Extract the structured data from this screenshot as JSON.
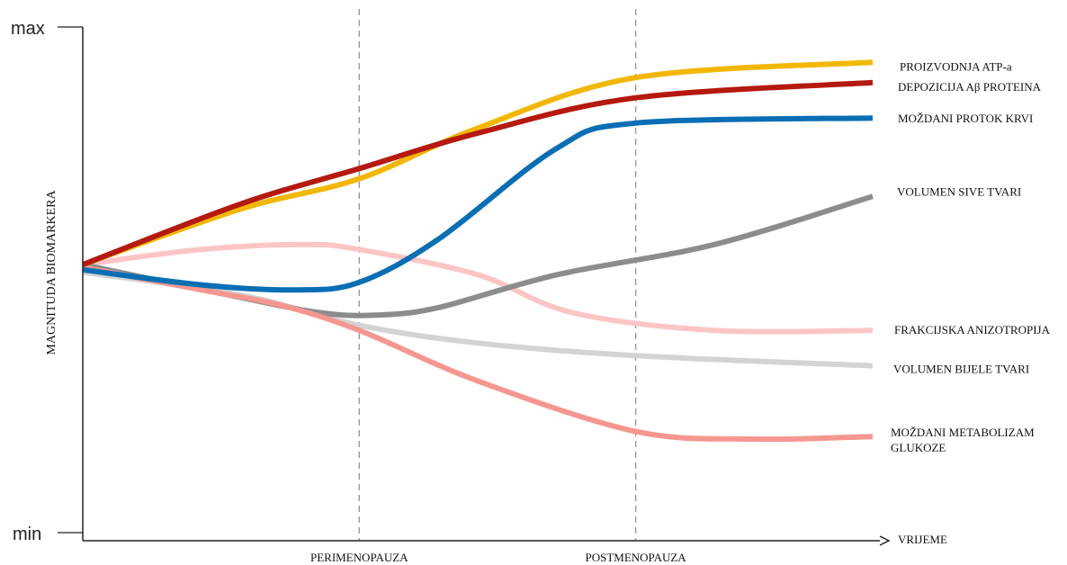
{
  "chart_data": {
    "type": "line",
    "ylabel": "MAGNITUDA BIOMARKERA",
    "xlabel": "VRIJEME",
    "ytick_labels": {
      "max": "max",
      "min": "min"
    },
    "ylim": [
      0,
      100
    ],
    "xlim": [
      0,
      100
    ],
    "phases": [
      {
        "label": "PERIMENOPAUZA",
        "x": 35
      },
      {
        "label": "POSTMENOPAUZA",
        "x": 70
      }
    ],
    "series": [
      {
        "name": "PROIZVODNJA ATP-a",
        "color": "#F2B705",
        "x": [
          0,
          20,
          35,
          50,
          70,
          100
        ],
        "y": [
          53,
          64,
          70,
          80,
          90,
          93
        ]
      },
      {
        "name": "DEPOZICIJA Aβ PROTEINA",
        "color": "#B5190F",
        "x": [
          0,
          20,
          35,
          50,
          70,
          100
        ],
        "y": [
          53,
          65,
          72,
          79,
          86,
          89
        ]
      },
      {
        "name": "MOŽDANI PROTOK KRVI",
        "color": "#0A6EB4",
        "x": [
          0,
          15,
          27,
          35,
          45,
          60,
          70,
          100
        ],
        "y": [
          52,
          49,
          48,
          49.5,
          58,
          76,
          81,
          82
        ]
      },
      {
        "name": "VOLUMEN SIVE TVARI",
        "color": "#8C8C8C",
        "x": [
          0,
          20,
          30,
          37,
          45,
          60,
          80,
          100
        ],
        "y": [
          53,
          46.5,
          43.5,
          43,
          44.5,
          51,
          57,
          66.5
        ]
      },
      {
        "name": "FRAKCIJSKA ANIZOTROPIJA",
        "color": "#FCC5C5",
        "x": [
          0,
          15,
          28,
          35,
          50,
          62,
          80,
          100
        ],
        "y": [
          53,
          56,
          57,
          56,
          51,
          43.5,
          40,
          40
        ]
      },
      {
        "name": "VOLUMEN BIJELE TVARI",
        "color": "#D3D3D3",
        "x": [
          0,
          20,
          35,
          50,
          70,
          100
        ],
        "y": [
          51.5,
          47,
          41,
          37.5,
          35,
          33
        ]
      },
      {
        "name": "MOŽDANI METABOLIZAM GLUKOZE",
        "color": "#F59790",
        "x": [
          0,
          15,
          25,
          35,
          50,
          70,
          85,
          100
        ],
        "y": [
          52.5,
          48,
          45,
          40,
          30,
          20,
          18.5,
          19
        ]
      }
    ]
  }
}
